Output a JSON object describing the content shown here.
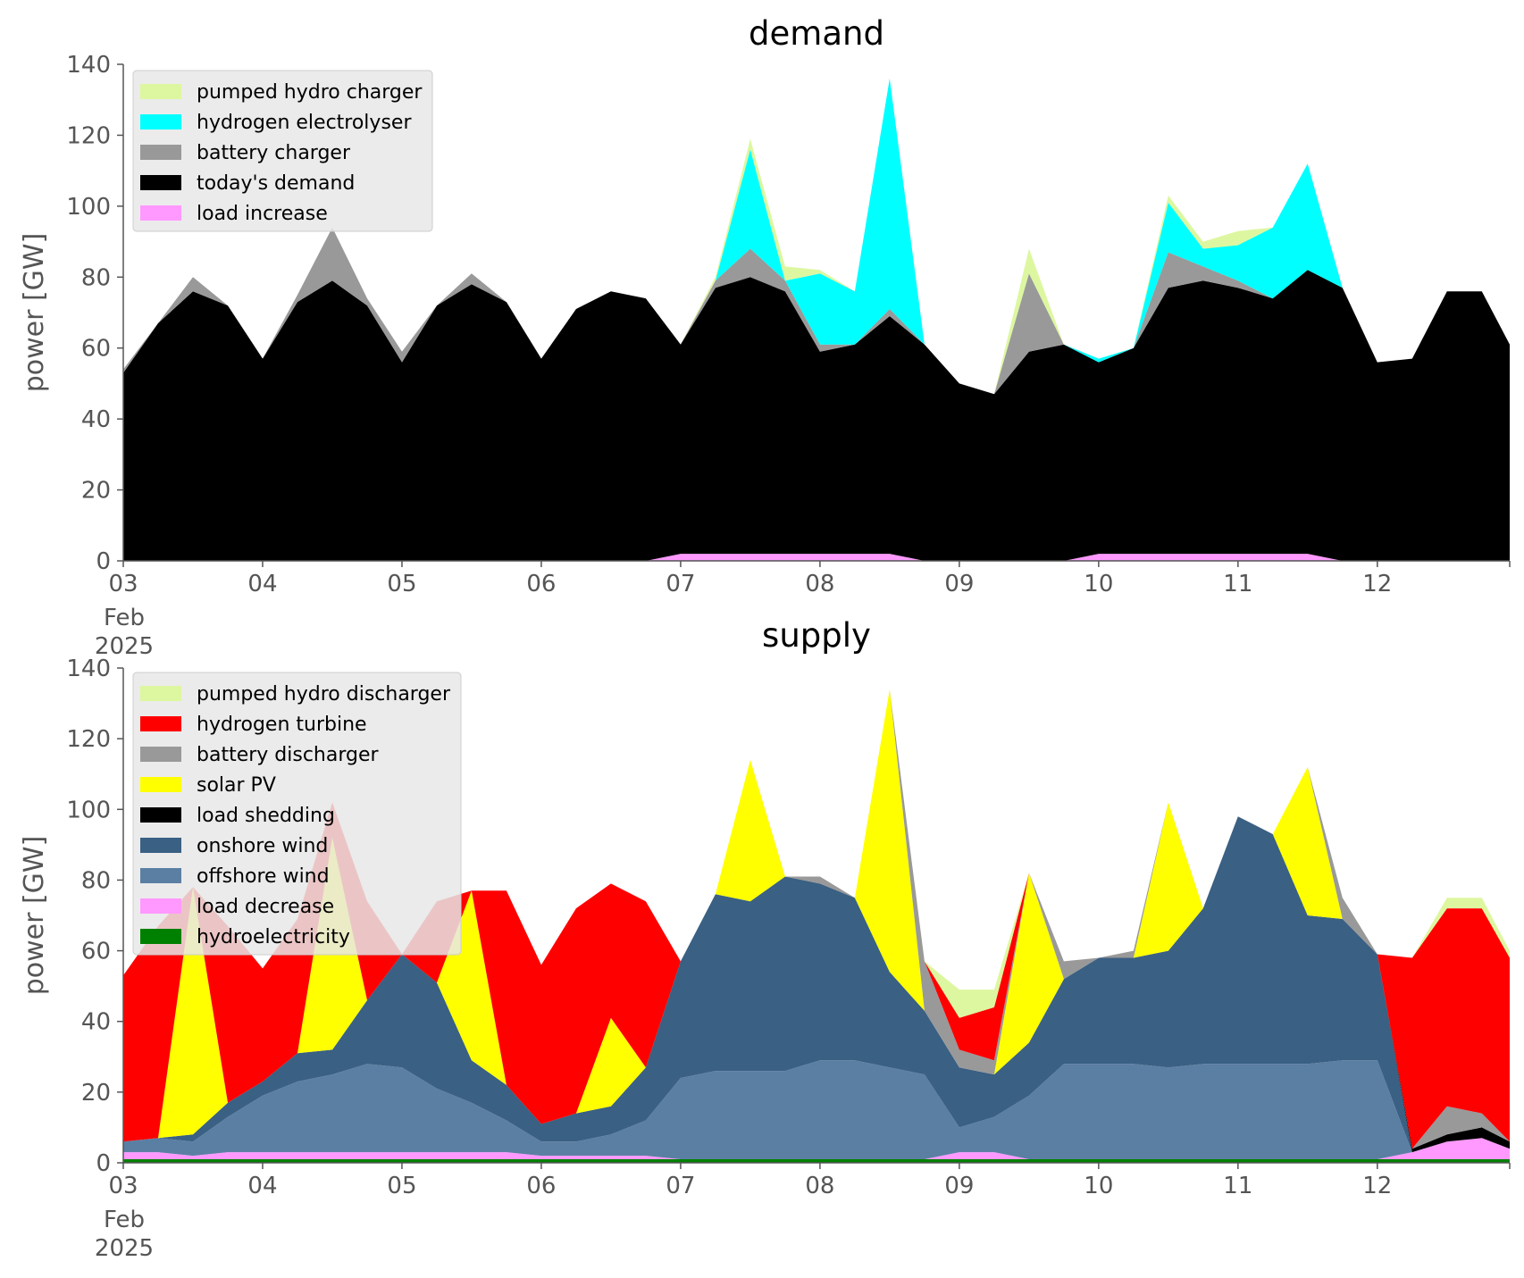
{
  "chart_data": [
    {
      "type": "area",
      "title": "demand",
      "xlabel": "",
      "ylabel": "power [GW]",
      "ylim": [
        0,
        140
      ],
      "yticks": [
        "0",
        "20",
        "40",
        "60",
        "80",
        "100",
        "120",
        "140"
      ],
      "xticks": [
        "03",
        "04",
        "05",
        "06",
        "07",
        "08",
        "09",
        "10",
        "11",
        "12"
      ],
      "xtick_sub": [
        "Feb",
        "2025"
      ],
      "x_days": [
        3,
        3.25,
        3.5,
        3.75,
        4,
        4.25,
        4.5,
        4.75,
        5,
        5.25,
        5.5,
        5.75,
        6,
        6.25,
        6.5,
        6.75,
        7,
        7.25,
        7.5,
        7.75,
        8,
        8.25,
        8.5,
        8.75,
        9,
        9.25,
        9.5,
        9.75,
        10,
        10.25,
        10.5,
        10.75,
        11,
        11.25,
        11.5,
        11.75,
        12,
        12.25,
        12.5,
        12.75,
        12.95
      ],
      "grid": false,
      "legend": "top-left",
      "series": [
        {
          "name": "load increase",
          "color": "#ff99ff",
          "values": [
            0,
            0,
            0,
            0,
            0,
            0,
            0,
            0,
            0,
            0,
            0,
            0,
            0,
            0,
            0,
            0,
            2,
            2,
            2,
            2,
            2,
            2,
            2,
            0,
            0,
            0,
            0,
            0,
            2,
            2,
            2,
            2,
            2,
            2,
            2,
            0,
            0,
            0,
            0,
            0,
            0
          ]
        },
        {
          "name": "today's demand",
          "color": "#000000",
          "values": [
            53,
            67,
            76,
            72,
            57,
            73,
            79,
            72,
            56,
            72,
            78,
            73,
            57,
            71,
            76,
            74,
            59,
            75,
            78,
            74,
            57,
            59,
            67,
            61,
            50,
            47,
            59,
            61,
            54,
            58,
            75,
            77,
            75,
            72,
            80,
            77,
            56,
            57,
            76,
            76,
            61
          ]
        },
        {
          "name": "battery charger",
          "color": "#999999",
          "values": [
            1,
            0,
            4,
            0,
            0,
            2,
            15,
            2,
            3,
            0,
            3,
            0,
            0,
            0,
            0,
            0,
            0,
            2,
            8,
            3,
            2,
            0,
            2,
            0,
            0,
            0,
            22,
            0,
            0,
            0,
            10,
            4,
            2,
            0,
            0,
            0,
            0,
            0,
            0,
            0,
            0
          ]
        },
        {
          "name": "hydrogen electrolyser",
          "color": "#00ffff",
          "values": [
            0,
            0,
            0,
            0,
            0,
            0,
            0,
            0,
            0,
            0,
            0,
            0,
            0,
            0,
            0,
            0,
            0,
            0,
            28,
            0,
            20,
            15,
            65,
            0,
            0,
            0,
            0,
            0,
            1,
            0,
            14,
            5,
            10,
            20,
            30,
            0,
            0,
            0,
            0,
            0,
            0
          ]
        },
        {
          "name": "pumped hydro charger",
          "color": "#ddf7a0",
          "values": [
            0,
            0,
            0,
            0,
            0,
            0,
            0,
            0,
            0,
            0,
            0,
            0,
            0,
            0,
            0,
            0,
            0,
            1,
            3,
            4,
            1,
            0,
            0,
            0,
            0,
            0,
            7,
            0,
            0,
            0,
            2,
            2,
            4,
            0,
            0,
            0,
            0,
            0,
            0,
            0,
            0
          ]
        }
      ]
    },
    {
      "type": "area",
      "title": "supply",
      "xlabel": "",
      "ylabel": "power [GW]",
      "ylim": [
        0,
        140
      ],
      "yticks": [
        "0",
        "20",
        "40",
        "60",
        "80",
        "100",
        "120",
        "140"
      ],
      "xticks": [
        "03",
        "04",
        "05",
        "06",
        "07",
        "08",
        "09",
        "10",
        "11",
        "12"
      ],
      "xtick_sub": [
        "Feb",
        "2025"
      ],
      "x_days": [
        3,
        3.25,
        3.5,
        3.75,
        4,
        4.25,
        4.5,
        4.75,
        5,
        5.25,
        5.5,
        5.75,
        6,
        6.25,
        6.5,
        6.75,
        7,
        7.25,
        7.5,
        7.75,
        8,
        8.25,
        8.5,
        8.75,
        9,
        9.25,
        9.5,
        9.75,
        10,
        10.25,
        10.5,
        10.75,
        11,
        11.25,
        11.5,
        11.75,
        12,
        12.25,
        12.5,
        12.75,
        12.95
      ],
      "grid": false,
      "legend": "top-left",
      "series": [
        {
          "name": "hydroelectricity",
          "color": "#008000",
          "values": [
            1,
            1,
            1,
            1,
            1,
            1,
            1,
            1,
            1,
            1,
            1,
            1,
            1,
            1,
            1,
            1,
            1,
            1,
            1,
            1,
            1,
            1,
            1,
            1,
            1,
            1,
            1,
            1,
            1,
            1,
            1,
            1,
            1,
            1,
            1,
            1,
            1,
            1,
            1,
            1,
            1
          ]
        },
        {
          "name": "load decrease",
          "color": "#ff99ff",
          "values": [
            2,
            2,
            1,
            2,
            2,
            2,
            2,
            2,
            2,
            2,
            2,
            2,
            1,
            1,
            1,
            1,
            0,
            0,
            0,
            0,
            0,
            0,
            0,
            0,
            2,
            2,
            0,
            0,
            0,
            0,
            0,
            0,
            0,
            0,
            0,
            0,
            0,
            2,
            5,
            6,
            3
          ]
        },
        {
          "name": "offshore wind",
          "color": "#5b7fa3",
          "values": [
            3,
            4,
            4,
            10,
            16,
            20,
            22,
            25,
            24,
            18,
            14,
            9,
            4,
            4,
            6,
            10,
            23,
            25,
            25,
            25,
            28,
            28,
            26,
            24,
            7,
            10,
            18,
            27,
            27,
            27,
            26,
            27,
            27,
            27,
            27,
            28,
            28,
            0,
            0,
            0,
            0
          ]
        },
        {
          "name": "onshore wind",
          "color": "#3a6083",
          "values": [
            0,
            0,
            2,
            4,
            4,
            8,
            7,
            18,
            32,
            30,
            12,
            10,
            5,
            8,
            8,
            15,
            33,
            50,
            48,
            55,
            50,
            46,
            27,
            18,
            17,
            12,
            15,
            24,
            30,
            30,
            33,
            44,
            70,
            65,
            42,
            40,
            30,
            0,
            0,
            0,
            0
          ]
        },
        {
          "name": "load shedding",
          "color": "#000000",
          "values": [
            0,
            0,
            0,
            0,
            0,
            0,
            0,
            0,
            0,
            0,
            0,
            0,
            0,
            0,
            0,
            0,
            0,
            0,
            0,
            0,
            0,
            0,
            0,
            0,
            0,
            0,
            0,
            0,
            0,
            0,
            0,
            0,
            0,
            0,
            0,
            0,
            0,
            1,
            2,
            3,
            2
          ]
        },
        {
          "name": "solar PV",
          "color": "#ffff00",
          "values": [
            0,
            0,
            70,
            0,
            0,
            0,
            60,
            0,
            0,
            0,
            48,
            0,
            0,
            0,
            25,
            0,
            0,
            0,
            40,
            0,
            0,
            0,
            80,
            0,
            0,
            0,
            48,
            0,
            0,
            0,
            42,
            0,
            0,
            0,
            42,
            0,
            0,
            0,
            0,
            0,
            0
          ]
        },
        {
          "name": "battery discharger",
          "color": "#999999",
          "values": [
            0,
            0,
            0,
            0,
            0,
            0,
            0,
            0,
            0,
            0,
            0,
            0,
            0,
            0,
            0,
            0,
            0,
            0,
            0,
            0,
            2,
            0,
            0,
            14,
            5,
            4,
            0,
            5,
            0,
            2,
            0,
            0,
            0,
            0,
            0,
            6,
            0,
            0,
            8,
            4,
            0
          ]
        },
        {
          "name": "hydrogen turbine",
          "color": "#ff0000",
          "values": [
            47,
            60,
            0,
            50,
            32,
            38,
            10,
            28,
            0,
            23,
            0,
            55,
            45,
            58,
            38,
            47,
            0,
            0,
            0,
            0,
            0,
            0,
            0,
            0,
            9,
            15,
            0,
            0,
            0,
            0,
            0,
            0,
            0,
            0,
            0,
            0,
            0,
            54,
            56,
            58,
            52
          ]
        },
        {
          "name": "pumped hydro discharger",
          "color": "#ddf7a0",
          "values": [
            0,
            0,
            0,
            0,
            0,
            0,
            0,
            0,
            0,
            0,
            0,
            0,
            0,
            0,
            0,
            0,
            0,
            0,
            0,
            0,
            0,
            0,
            0,
            0,
            8,
            5,
            0,
            0,
            0,
            0,
            0,
            0,
            0,
            0,
            0,
            0,
            0,
            0,
            3,
            3,
            2
          ]
        }
      ]
    }
  ]
}
